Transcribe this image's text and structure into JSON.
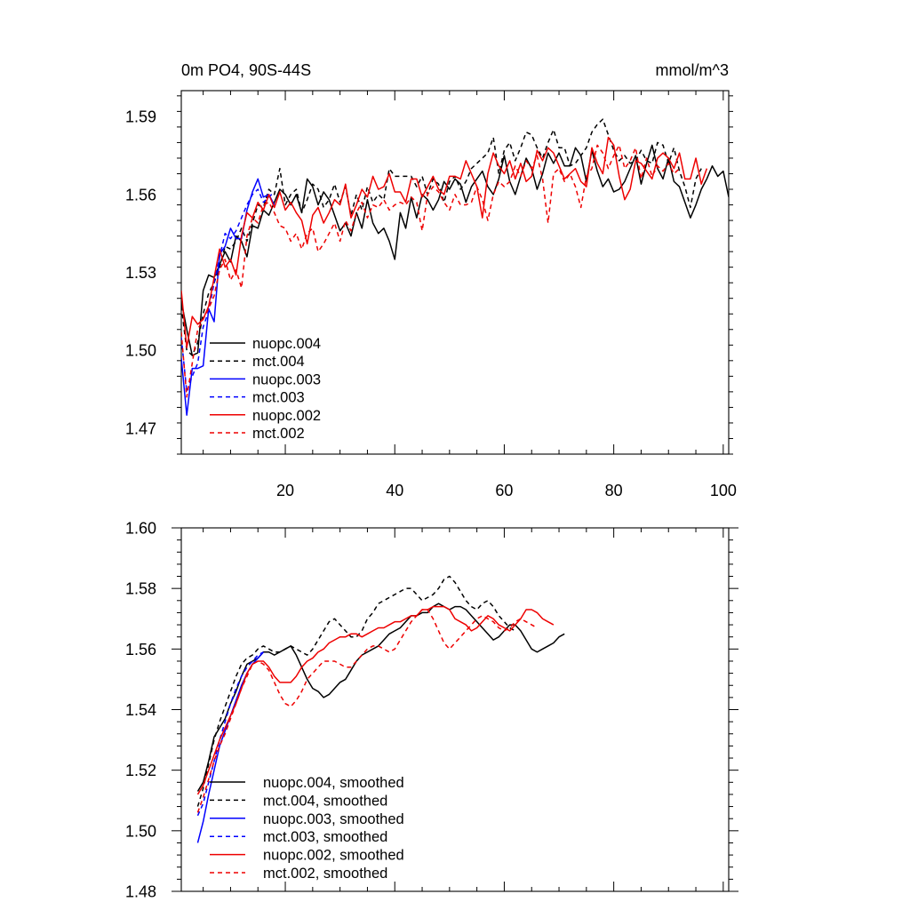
{
  "chart_data": [
    {
      "type": "line",
      "title_left": "0m PO4, 90S-44S",
      "title_right": "mmol/m^3",
      "xlim": [
        1,
        101
      ],
      "ylim": [
        1.46,
        1.6
      ],
      "xticks": [
        20,
        40,
        60,
        80,
        100
      ],
      "xtick_labels": [
        "20",
        "40",
        "60",
        "80",
        "100"
      ],
      "yticks": [
        1.47,
        1.5,
        1.53,
        1.56,
        1.59
      ],
      "ytick_labels": [
        "1.47",
        "1.50",
        "1.53",
        "1.56",
        "1.59"
      ],
      "grid": false,
      "legend_position": "bottom-left",
      "series": [
        {
          "name": "nuopc.004",
          "color": "#000000",
          "dash": "solid",
          "x_start": 1,
          "values": [
            1.519,
            1.508,
            1.498,
            1.499,
            1.523,
            1.529,
            1.528,
            1.533,
            1.538,
            1.534,
            1.544,
            1.542,
            1.536,
            1.548,
            1.547,
            1.554,
            1.552,
            1.557,
            1.562,
            1.56,
            1.556,
            1.56,
            1.553,
            1.566,
            1.563,
            1.556,
            1.561,
            1.558,
            1.552,
            1.546,
            1.549,
            1.544,
            1.553,
            1.547,
            1.558,
            1.549,
            1.545,
            1.547,
            1.542,
            1.535,
            1.553,
            1.547,
            1.559,
            1.551,
            1.56,
            1.558,
            1.554,
            1.558,
            1.565,
            1.562,
            1.566,
            1.564,
            1.557,
            1.563,
            1.566,
            1.569,
            1.563,
            1.56,
            1.566,
            1.575,
            1.565,
            1.56,
            1.567,
            1.574,
            1.57,
            1.562,
            1.568,
            1.576,
            1.572,
            1.576,
            1.571,
            1.571,
            1.578,
            1.575,
            1.565,
            1.577,
            1.569,
            1.563,
            1.566,
            1.561,
            1.562,
            1.565,
            1.57,
            1.575,
            1.564,
            1.572,
            1.579,
            1.57,
            1.566,
            1.574,
            1.565,
            1.563,
            1.557,
            1.551,
            1.556,
            1.562,
            1.566,
            1.571,
            1.567,
            1.569,
            1.559
          ]
        },
        {
          "name": "mct.004",
          "color": "#000000",
          "dash": "dash",
          "x_start": 1,
          "values": [
            1.517,
            1.5,
            1.498,
            1.503,
            1.514,
            1.522,
            1.526,
            1.532,
            1.54,
            1.539,
            1.542,
            1.547,
            1.542,
            1.549,
            1.556,
            1.555,
            1.562,
            1.56,
            1.57,
            1.556,
            1.56,
            1.562,
            1.553,
            1.558,
            1.564,
            1.562,
            1.555,
            1.558,
            1.564,
            1.557,
            1.563,
            1.552,
            1.56,
            1.554,
            1.563,
            1.557,
            1.56,
            1.558,
            1.57,
            1.567,
            1.567,
            1.567,
            1.567,
            1.563,
            1.567,
            1.56,
            1.566,
            1.564,
            1.557,
            1.565,
            1.567,
            1.562,
            1.565,
            1.57,
            1.572,
            1.574,
            1.576,
            1.582,
            1.568,
            1.577,
            1.58,
            1.573,
            1.578,
            1.584,
            1.583,
            1.578,
            1.574,
            1.58,
            1.585,
            1.578,
            1.578,
            1.571,
            1.572,
            1.575,
            1.578,
            1.584,
            1.587,
            1.589,
            1.583,
            1.577,
            1.573,
            1.575,
            1.572,
            1.573,
            1.577,
            1.573,
            1.572,
            1.58,
            1.579,
            1.572,
            1.578,
            1.569,
            1.563,
            1.555,
            1.566,
            1.57
          ]
        },
        {
          "name": "nuopc.003",
          "color": "#0000ff",
          "dash": "solid",
          "x_start": 1,
          "values": [
            1.497,
            1.475,
            1.493,
            1.493,
            1.494,
            1.516,
            1.511,
            1.537,
            1.54,
            1.547,
            1.543,
            1.543,
            1.554,
            1.561,
            1.566,
            1.559,
            1.56,
            1.556
          ]
        },
        {
          "name": "mct.003",
          "color": "#0000ff",
          "dash": "dash",
          "x_start": 1,
          "values": [
            1.505,
            1.484,
            1.49,
            1.495,
            1.509,
            1.515,
            1.526,
            1.536,
            1.545,
            1.543,
            1.546,
            1.551,
            1.556,
            1.56,
            1.562,
            1.557,
            1.559,
            1.561
          ]
        },
        {
          "name": "nuopc.002",
          "color": "#ee0000",
          "dash": "solid",
          "x_start": 1,
          "values": [
            1.523,
            1.501,
            1.513,
            1.51,
            1.512,
            1.517,
            1.528,
            1.539,
            1.532,
            1.535,
            1.529,
            1.544,
            1.553,
            1.551,
            1.557,
            1.554,
            1.56,
            1.555,
            1.561,
            1.554,
            1.557,
            1.553,
            1.55,
            1.541,
            1.552,
            1.555,
            1.549,
            1.553,
            1.558,
            1.556,
            1.564,
            1.551,
            1.556,
            1.562,
            1.559,
            1.567,
            1.562,
            1.563,
            1.568,
            1.561,
            1.561,
            1.557,
            1.566,
            1.566,
            1.559,
            1.563,
            1.567,
            1.562,
            1.56,
            1.567,
            1.567,
            1.566,
            1.573,
            1.568,
            1.563,
            1.551,
            1.568,
            1.576,
            1.571,
            1.568,
            1.573,
            1.566,
            1.572,
            1.565,
            1.567,
            1.577,
            1.573,
            1.578,
            1.576,
            1.571,
            1.566,
            1.568,
            1.57,
            1.565,
            1.563,
            1.578,
            1.572,
            1.568,
            1.582,
            1.579,
            1.567,
            1.558,
            1.562,
            1.573,
            1.572,
            1.569,
            1.566,
            1.574,
            1.576,
            1.574,
            1.57,
            1.576,
            1.566,
            1.566,
            1.574,
            1.564,
            1.57
          ]
        },
        {
          "name": "mct.002",
          "color": "#ee0000",
          "dash": "dash",
          "x_start": 1,
          "values": [
            1.507,
            1.482,
            1.495,
            1.508,
            1.512,
            1.516,
            1.521,
            1.531,
            1.535,
            1.527,
            1.531,
            1.524,
            1.544,
            1.551,
            1.549,
            1.556,
            1.557,
            1.553,
            1.548,
            1.547,
            1.542,
            1.545,
            1.539,
            1.545,
            1.547,
            1.538,
            1.541,
            1.545,
            1.549,
            1.542,
            1.55,
            1.546,
            1.553,
            1.557,
            1.551,
            1.556,
            1.555,
            1.558,
            1.554,
            1.556,
            1.557,
            1.556,
            1.559,
            1.557,
            1.546,
            1.56,
            1.563,
            1.561,
            1.557,
            1.554,
            1.56,
            1.556,
            1.556,
            1.557,
            1.563,
            1.558,
            1.55,
            1.56,
            1.565,
            1.563,
            1.565,
            1.571,
            1.567,
            1.573,
            1.57,
            1.575,
            1.566,
            1.549,
            1.568,
            1.57,
            1.565,
            1.568,
            1.563,
            1.555,
            1.567,
            1.57,
            1.579,
            1.576,
            1.57,
            1.575,
            1.579,
            1.57,
            1.573,
            1.578,
            1.566,
            1.574,
            1.567,
            1.571,
            1.569,
            1.572,
            1.568,
            1.57
          ]
        }
      ]
    },
    {
      "type": "line",
      "xlim": [
        1,
        101
      ],
      "ylim": [
        1.48,
        1.6
      ],
      "xticks": [
        20,
        40,
        60,
        80,
        100
      ],
      "yticks": [
        1.48,
        1.5,
        1.52,
        1.54,
        1.56,
        1.58,
        1.6
      ],
      "ytick_labels": [
        "1.48",
        "1.50",
        "1.52",
        "1.54",
        "1.56",
        "1.58",
        "1.60"
      ],
      "grid": false,
      "legend_position": "bottom-left",
      "series": [
        {
          "name": "nuopc.004, smoothed",
          "color": "#000000",
          "dash": "solid",
          "x_start": 4,
          "values": [
            1.513,
            1.516,
            1.523,
            1.531,
            1.534,
            1.537,
            1.542,
            1.546,
            1.551,
            1.555,
            1.556,
            1.557,
            1.559,
            1.559,
            1.558,
            1.559,
            1.56,
            1.561,
            1.558,
            1.554,
            1.55,
            1.547,
            1.546,
            1.544,
            1.545,
            1.547,
            1.549,
            1.55,
            1.553,
            1.556,
            1.558,
            1.559,
            1.56,
            1.561,
            1.563,
            1.565,
            1.566,
            1.567,
            1.569,
            1.571,
            1.571,
            1.572,
            1.572,
            1.574,
            1.575,
            1.574,
            1.573,
            1.574,
            1.574,
            1.573,
            1.571,
            1.569,
            1.567,
            1.565,
            1.563,
            1.564,
            1.566,
            1.568,
            1.568,
            1.566,
            1.563,
            1.56,
            1.559,
            1.56,
            1.561,
            1.562,
            1.564,
            1.565
          ]
        },
        {
          "name": "mct.004, smoothed",
          "color": "#000000",
          "dash": "dash",
          "x_start": 4,
          "values": [
            1.508,
            1.514,
            1.522,
            1.53,
            1.536,
            1.541,
            1.546,
            1.551,
            1.555,
            1.557,
            1.558,
            1.56,
            1.561,
            1.56,
            1.559,
            1.559,
            1.56,
            1.561,
            1.56,
            1.559,
            1.558,
            1.56,
            1.563,
            1.566,
            1.569,
            1.57,
            1.568,
            1.566,
            1.564,
            1.564,
            1.566,
            1.57,
            1.572,
            1.575,
            1.576,
            1.577,
            1.578,
            1.579,
            1.58,
            1.58,
            1.578,
            1.576,
            1.577,
            1.578,
            1.58,
            1.583,
            1.584,
            1.582,
            1.579,
            1.576,
            1.574,
            1.573,
            1.575,
            1.576,
            1.574,
            1.571,
            1.569,
            1.567,
            1.566
          ]
        },
        {
          "name": "nuopc.003, smoothed",
          "color": "#0000ff",
          "dash": "solid",
          "x_start": 4,
          "values": [
            1.496,
            1.503,
            1.512,
            1.52,
            1.528,
            1.533,
            1.538,
            1.543,
            1.548,
            1.552,
            1.555,
            1.557,
            1.559
          ]
        },
        {
          "name": "mct.003, smoothed",
          "color": "#0000ff",
          "dash": "dash",
          "x_start": 4,
          "values": [
            1.505,
            1.509,
            1.516,
            1.523,
            1.53,
            1.536,
            1.542,
            1.547,
            1.551,
            1.554,
            1.556,
            1.558,
            1.559
          ]
        },
        {
          "name": "nuopc.002, smoothed",
          "color": "#ee0000",
          "dash": "solid",
          "x_start": 4,
          "values": [
            1.512,
            1.515,
            1.52,
            1.525,
            1.53,
            1.534,
            1.538,
            1.542,
            1.547,
            1.552,
            1.555,
            1.556,
            1.556,
            1.554,
            1.551,
            1.549,
            1.549,
            1.549,
            1.551,
            1.554,
            1.556,
            1.557,
            1.559,
            1.56,
            1.562,
            1.563,
            1.564,
            1.564,
            1.565,
            1.565,
            1.564,
            1.565,
            1.566,
            1.567,
            1.567,
            1.568,
            1.569,
            1.569,
            1.57,
            1.571,
            1.571,
            1.573,
            1.573,
            1.574,
            1.574,
            1.574,
            1.573,
            1.57,
            1.569,
            1.568,
            1.566,
            1.567,
            1.569,
            1.571,
            1.57,
            1.568,
            1.567,
            1.566,
            1.568,
            1.57,
            1.573,
            1.573,
            1.572,
            1.57,
            1.569,
            1.568
          ]
        },
        {
          "name": "mct.002, smoothed",
          "color": "#ee0000",
          "dash": "dash",
          "x_start": 4,
          "values": [
            1.506,
            1.511,
            1.517,
            1.523,
            1.528,
            1.532,
            1.537,
            1.542,
            1.547,
            1.551,
            1.555,
            1.556,
            1.555,
            1.553,
            1.549,
            1.545,
            1.542,
            1.541,
            1.543,
            1.546,
            1.55,
            1.552,
            1.554,
            1.556,
            1.556,
            1.556,
            1.555,
            1.554,
            1.554,
            1.556,
            1.558,
            1.56,
            1.561,
            1.561,
            1.56,
            1.559,
            1.56,
            1.563,
            1.566,
            1.569,
            1.571,
            1.573,
            1.573,
            1.57,
            1.566,
            1.562,
            1.56,
            1.562,
            1.564,
            1.566,
            1.568,
            1.57,
            1.571,
            1.57,
            1.569,
            1.567,
            1.566,
            1.567,
            1.569,
            1.57,
            1.569,
            1.568,
            1.567
          ]
        }
      ]
    }
  ]
}
